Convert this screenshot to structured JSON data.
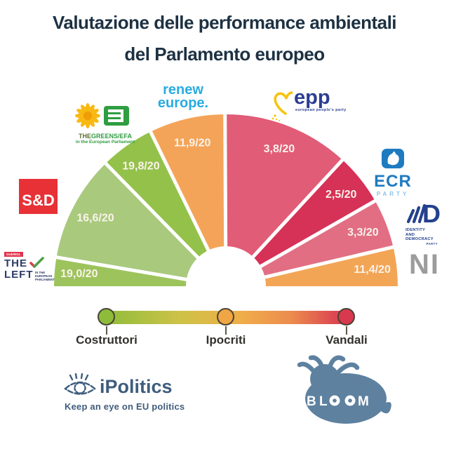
{
  "title": {
    "line1": "Valutazione delle performance ambientali",
    "line2": "del Parlamento europeo"
  },
  "chart_data": {
    "type": "hemicycle-pie",
    "title": "Valutazione delle performance ambientali del Parlamento europeo",
    "max_score": 20,
    "segments": [
      {
        "id": "left",
        "party": "The Left",
        "score": 19.0,
        "score_label": "19,0/20",
        "start_angle": 180.0,
        "end_angle": 170.3,
        "color": "#9dc45c"
      },
      {
        "id": "sd",
        "party": "S&D",
        "score": 16.6,
        "score_label": "16,6/20",
        "start_angle": 170.3,
        "end_angle": 134.4,
        "color": "#a9c97d"
      },
      {
        "id": "greens",
        "party": "Greens/EFA",
        "score": 19.8,
        "score_label": "19,8/20",
        "start_angle": 134.4,
        "end_angle": 116.0,
        "color": "#93c14a"
      },
      {
        "id": "renew",
        "party": "Renew Europe",
        "score": 11.9,
        "score_label": "11,9/20",
        "start_angle": 116.0,
        "end_angle": 90.3,
        "color": "#f4a458"
      },
      {
        "id": "epp",
        "party": "EPP",
        "score": 3.8,
        "score_label": "3,8/20",
        "start_angle": 90.3,
        "end_angle": 47.3,
        "color": "#e15c76"
      },
      {
        "id": "ecr",
        "party": "ECR",
        "score": 2.5,
        "score_label": "2,5/20",
        "start_angle": 47.3,
        "end_angle": 29.8,
        "color": "#d63156"
      },
      {
        "id": "id",
        "party": "ID",
        "score": 3.3,
        "score_label": "3,3/20",
        "start_angle": 29.8,
        "end_angle": 13.2,
        "color": "#e26e83"
      },
      {
        "id": "ni",
        "party": "NI",
        "score": 11.4,
        "score_label": "11,4/20",
        "start_angle": 13.2,
        "end_angle": 0.0,
        "color": "#f3a556"
      }
    ]
  },
  "legend": {
    "items": [
      {
        "label": "Costruttori",
        "color": "#8cbc3a"
      },
      {
        "label": "Ipocriti",
        "color": "#f0a644"
      },
      {
        "label": "Vandali",
        "color": "#d8394f"
      }
    ]
  },
  "party_logos": {
    "theleft": {
      "tag": "GUE/NGL",
      "line1": "THE",
      "line2": "LEFT",
      "side1": "IN THE",
      "side2": "EUROPEAN",
      "side3": "PARLIAMENT"
    },
    "sd": {
      "text": "S&D"
    },
    "greens": {
      "prefix": "THE",
      "name": "GREENS/EFA",
      "sub": "in the European Parliament"
    },
    "renew": {
      "line1": "renew",
      "line2": "europe."
    },
    "epp": {
      "name": "epp",
      "tagline": "european people's party"
    },
    "ecr": {
      "name": "ECR",
      "sub": "PARTY"
    },
    "id": {
      "mark": "D",
      "line1": "IDENTITY",
      "line2": "AND DEMOCRACY",
      "line3": "PARTY"
    },
    "ni": {
      "name": "NI"
    }
  },
  "footer": {
    "ipolitics": {
      "name": "iPolitics",
      "tagline": "Keep an eye on EU politics"
    },
    "bloom": {
      "name": "BLOOM",
      "letters": [
        "B",
        "L",
        "M"
      ]
    }
  }
}
